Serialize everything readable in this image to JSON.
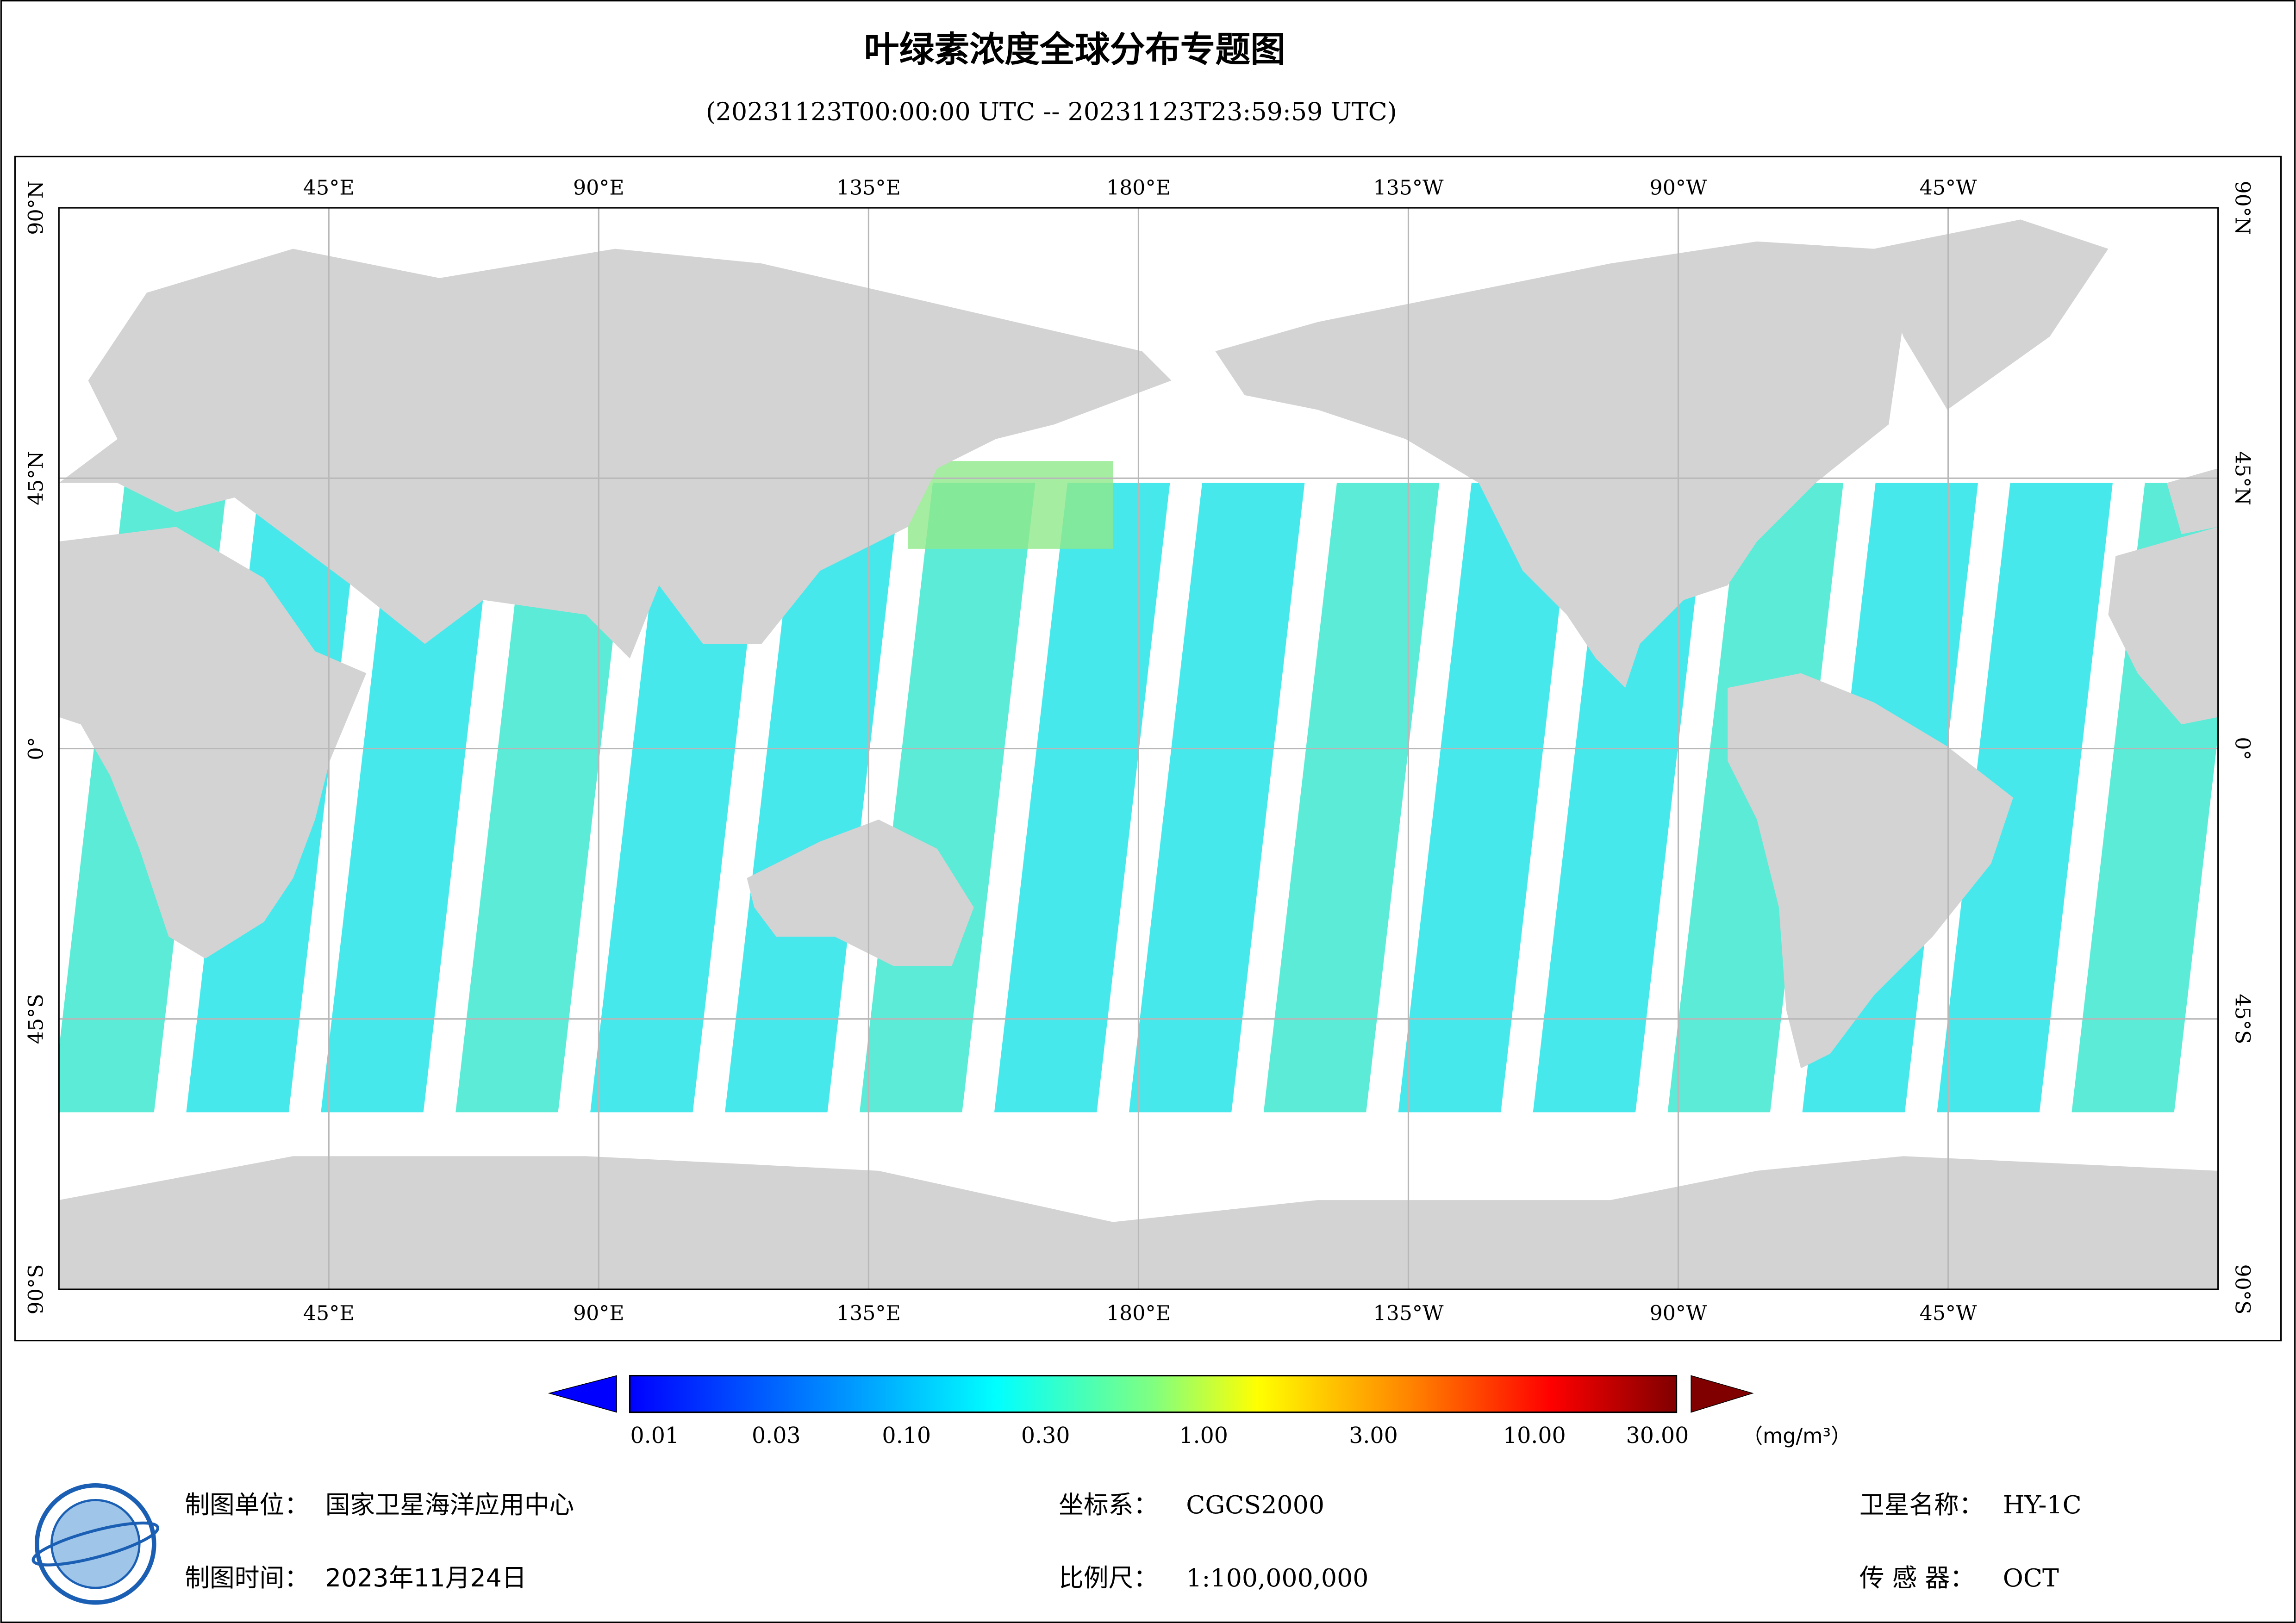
{
  "header": {
    "title": "叶绿素浓度全球分布专题图",
    "subtitle": "(20231123T00:00:00 UTC -- 20231123T23:59:59 UTC)"
  },
  "map": {
    "lon_labels": [
      "45°E",
      "90°E",
      "135°E",
      "180°E",
      "135°W",
      "90°W",
      "45°W"
    ],
    "lat_labels": [
      "90°N",
      "45°N",
      "0°",
      "45°S",
      "90°S"
    ]
  },
  "colorbar": {
    "labels": [
      "0.01",
      "0.03",
      "0.10",
      "0.30",
      "1.00",
      "3.00",
      "10.00",
      "30.00"
    ],
    "unit": "（mg/m³）"
  },
  "footer": {
    "unit_label": "制图单位：",
    "unit": "国家卫星海洋应用中心",
    "time_label": "制图时间：",
    "time": "2023年11月24日",
    "crs_label": "坐标系：",
    "crs": "CGCS2000",
    "scale_label": "比例尺：",
    "scale": "1:100,000,000",
    "satellite_label": "卫星名称：",
    "satellite": "HY-1C",
    "sensor_label": "传 感 器：",
    "sensor": "OCT"
  }
}
